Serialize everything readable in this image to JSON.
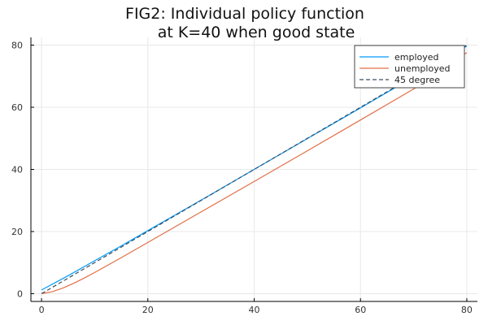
{
  "chart_data": {
    "type": "line",
    "title_lines": [
      "FIG2: Individual policy function",
      "at K=40 when good state"
    ],
    "xlabel": "",
    "ylabel": "",
    "xlim": [
      -2,
      82
    ],
    "ylim": [
      -2.5,
      82.5
    ],
    "xticks": [
      0,
      20,
      40,
      60,
      80
    ],
    "yticks": [
      0,
      20,
      40,
      60,
      80
    ],
    "grid": true,
    "legend_position": "top-right",
    "series": [
      {
        "name": "employed",
        "color": "#009AFA",
        "dash": "solid",
        "x": [
          0,
          5,
          10,
          15,
          20,
          30,
          40,
          50,
          60,
          70,
          80
        ],
        "y": [
          1.2,
          5.8,
          10.6,
          15.4,
          20.3,
          30.1,
          40.0,
          49.9,
          59.8,
          69.8,
          79.7
        ]
      },
      {
        "name": "unemployed",
        "color": "#E26F46",
        "dash": "solid",
        "x": [
          0,
          2,
          4,
          6,
          8,
          10,
          15,
          20,
          30,
          40,
          50,
          60,
          70,
          80
        ],
        "y": [
          0.0,
          0.6,
          1.8,
          3.3,
          5.0,
          6.8,
          11.6,
          16.5,
          26.3,
          36.1,
          46.0,
          55.9,
          65.9,
          77.6
        ]
      },
      {
        "name": "45 degree",
        "color": "#3B4D60",
        "dash": "dashed",
        "x": [
          0,
          80
        ],
        "y": [
          0,
          80
        ]
      }
    ]
  }
}
